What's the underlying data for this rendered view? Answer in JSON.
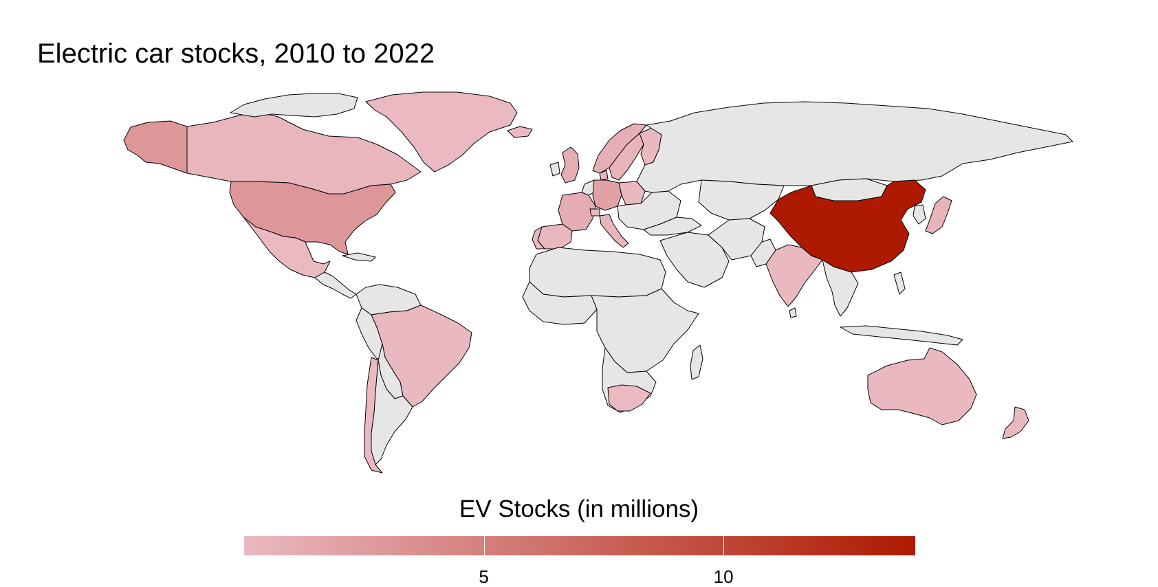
{
  "title": "Electric car stocks, 2010 to 2022",
  "colors": {
    "no_data": "#e6e6e6",
    "border": "#000000",
    "scale_low": "#eab9c2",
    "scale_high": "#ad1a00"
  },
  "legend": {
    "title": "EV Stocks (in millions)",
    "min": 0,
    "max": 14,
    "ticks": [
      {
        "value": 5,
        "label": "5"
      },
      {
        "value": 10,
        "label": "10"
      }
    ]
  },
  "map_data": {
    "type": "choropleth",
    "variable": "EV Stocks (in millions)",
    "regions": [
      {
        "name": "China",
        "value": 14
      },
      {
        "name": "United States",
        "value": 3
      },
      {
        "name": "Alaska",
        "value": 3
      },
      {
        "name": "Germany",
        "value": 2
      },
      {
        "name": "France",
        "value": 1.1
      },
      {
        "name": "United Kingdom",
        "value": 1
      },
      {
        "name": "Norway",
        "value": 0.9
      },
      {
        "name": "Netherlands",
        "value": 0.5
      },
      {
        "name": "Sweden",
        "value": 0.5
      },
      {
        "name": "Canada",
        "value": 0.3
      },
      {
        "name": "Japan",
        "value": 0.5
      },
      {
        "name": "South Korea",
        "value": 0.4
      },
      {
        "name": "Italy",
        "value": 0.3
      },
      {
        "name": "Spain",
        "value": 0.2
      },
      {
        "name": "Portugal",
        "value": 0.1
      },
      {
        "name": "Belgium",
        "value": 0.3
      },
      {
        "name": "Switzerland",
        "value": 0.2
      },
      {
        "name": "Poland",
        "value": 0.05
      },
      {
        "name": "Denmark",
        "value": 0.2
      },
      {
        "name": "Finland",
        "value": 0.1
      },
      {
        "name": "Iceland",
        "value": 0.03
      },
      {
        "name": "Greenland",
        "value": 0.02
      },
      {
        "name": "India",
        "value": 0.1
      },
      {
        "name": "Australia",
        "value": 0.05
      },
      {
        "name": "New Zealand",
        "value": 0.05
      },
      {
        "name": "Brazil",
        "value": 0.05
      },
      {
        "name": "Chile",
        "value": 0.01
      },
      {
        "name": "Mexico",
        "value": 0.02
      },
      {
        "name": "South Africa",
        "value": 0.01
      }
    ]
  }
}
